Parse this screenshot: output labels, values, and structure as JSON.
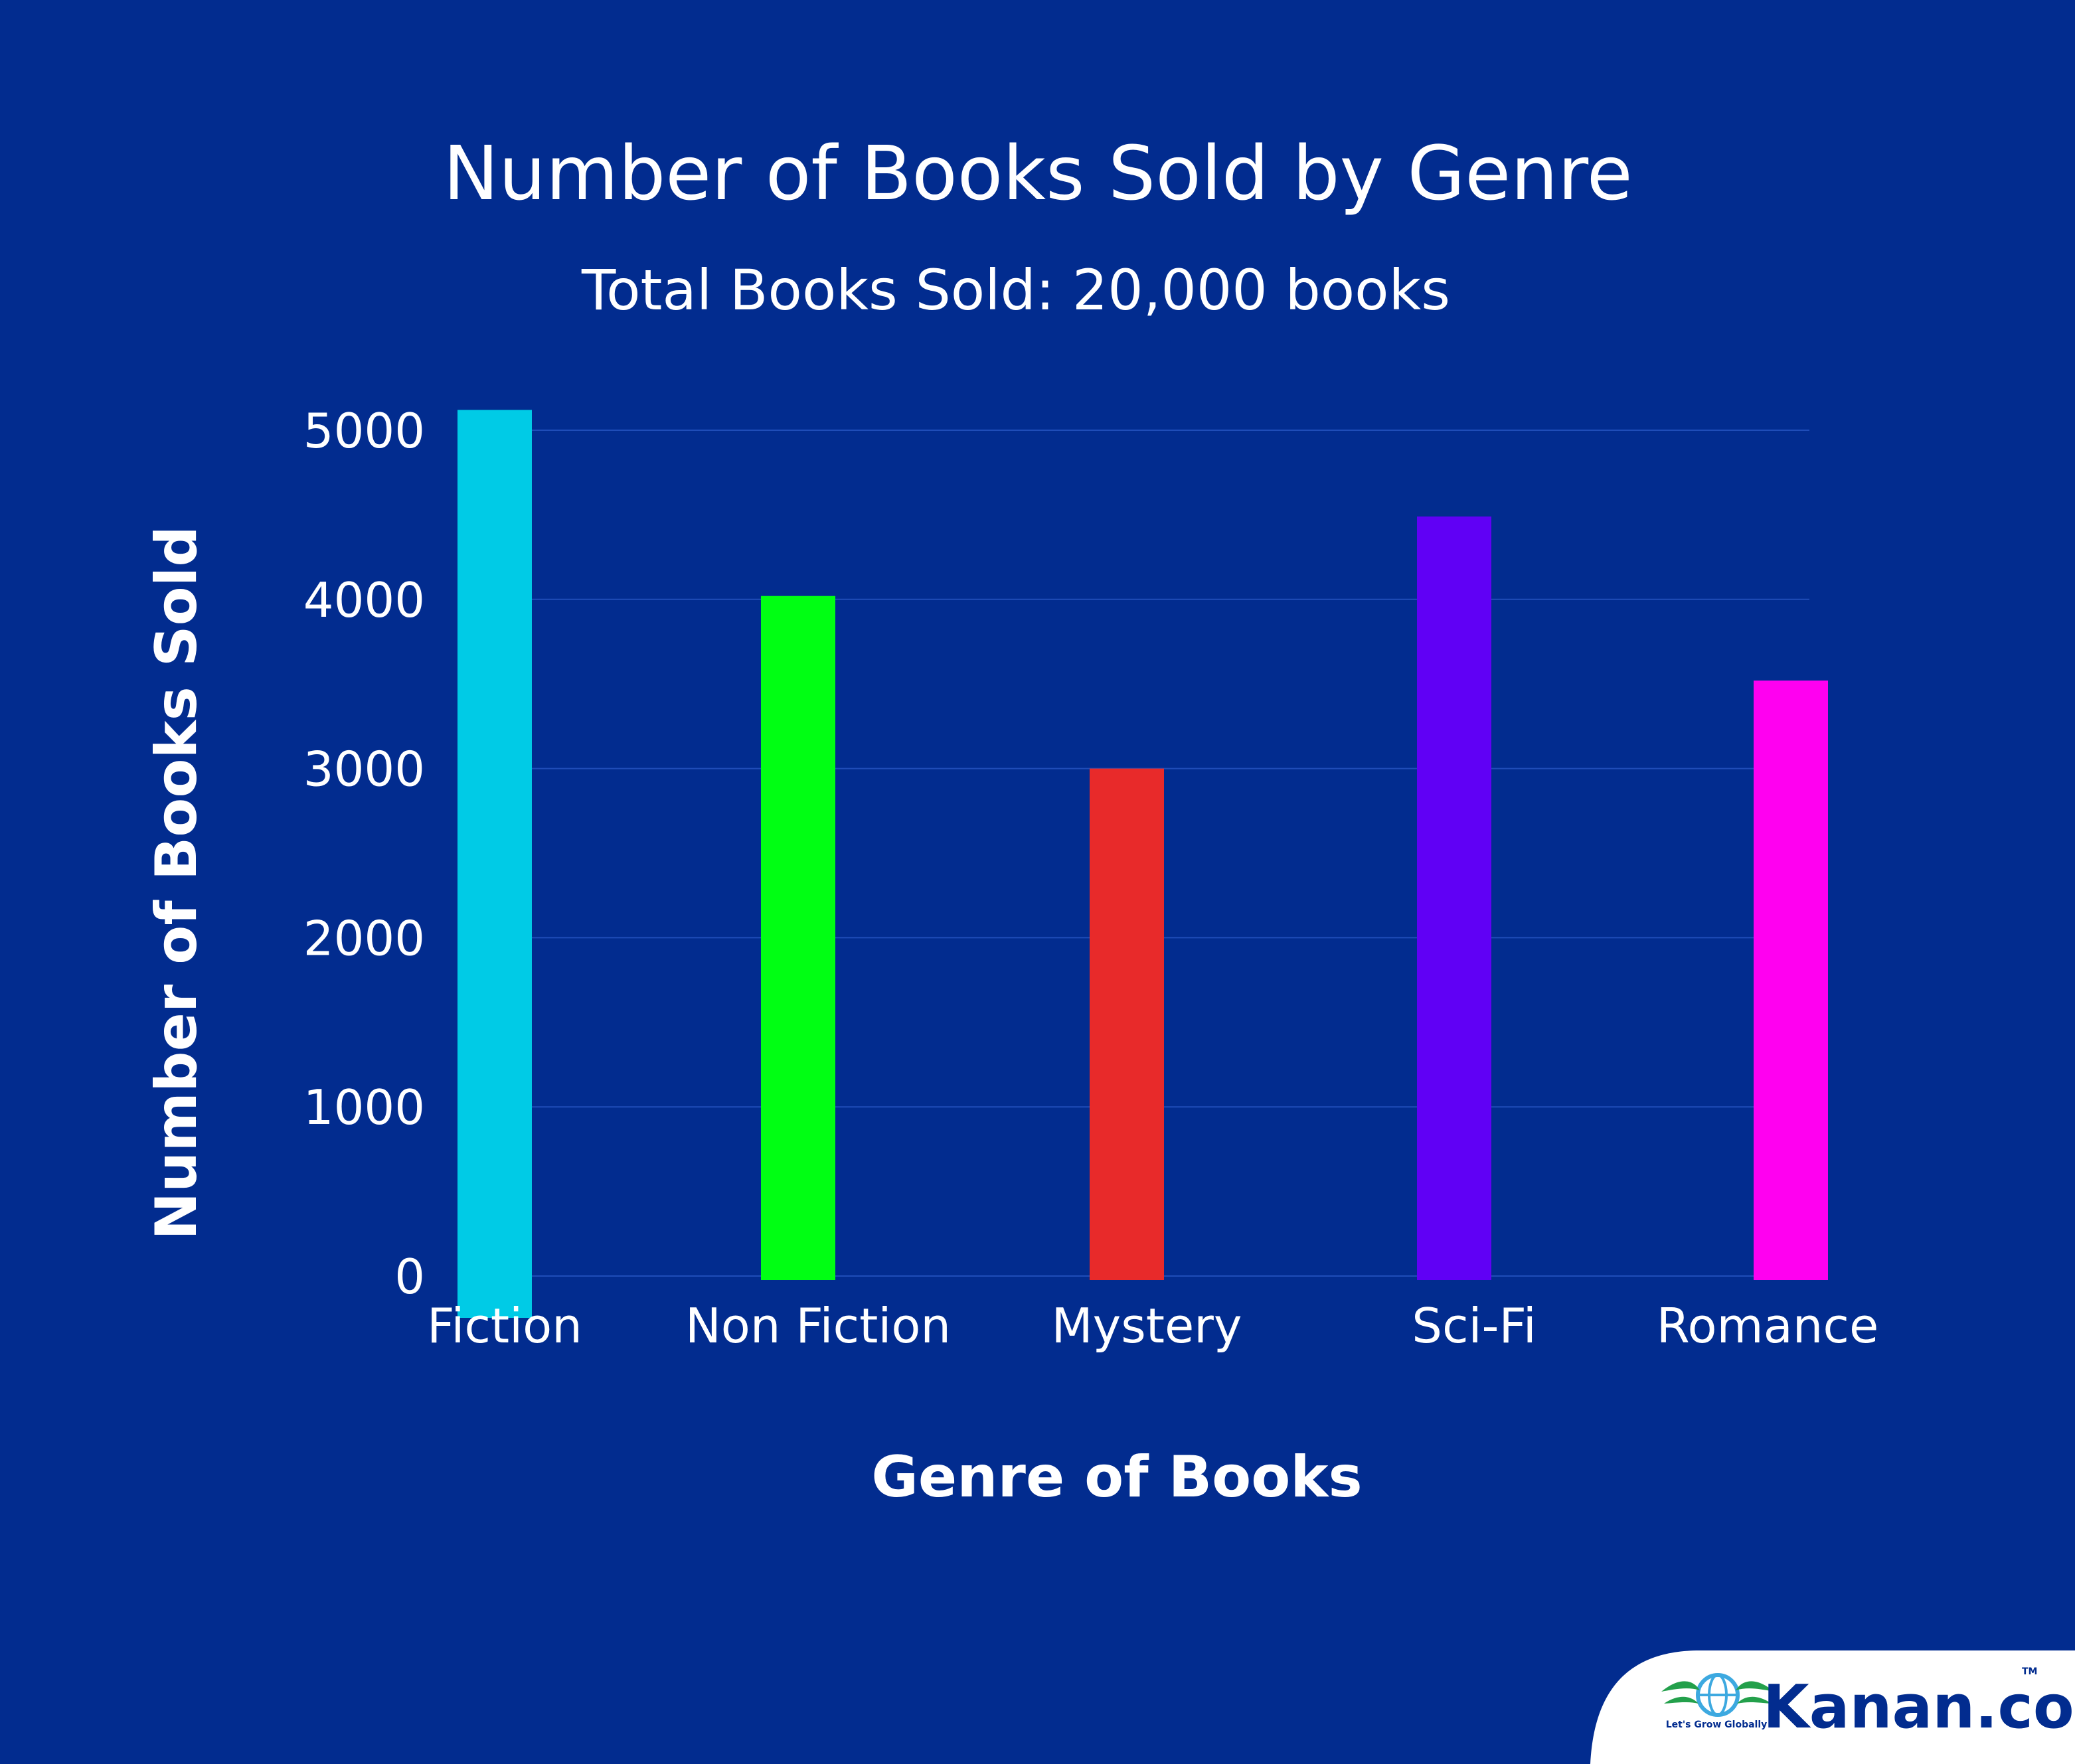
{
  "chart_data": {
    "type": "bar",
    "title": "Number of Books Sold by Genre",
    "subtitle": "Total Books Sold: 20,000 books",
    "xlabel": "Genre of Books",
    "ylabel": "Number of Books Sold",
    "categories": [
      "Fiction",
      "Non Fiction",
      "Mystery",
      "Sci-Fi",
      "Romance"
    ],
    "values": [
      5120,
      4020,
      3000,
      4490,
      3520
    ],
    "bar_colors": [
      "#00cbe6",
      "#00ff13",
      "#e82a2a",
      "#6000f5",
      "#ff00f0"
    ],
    "yticks": [
      "0",
      "1000",
      "2000",
      "3000",
      "4000",
      "5000"
    ],
    "ylim": [
      0,
      5000
    ],
    "grid": true,
    "legend": "none"
  },
  "colors": {
    "background": "#022c8f",
    "text": "#ffffff",
    "gridline": "#1f4db8"
  },
  "brand": {
    "name": "Kanan.co",
    "tagline": "Let's Grow Globally",
    "mark": "TM",
    "icon": "globe-wings-icon"
  }
}
